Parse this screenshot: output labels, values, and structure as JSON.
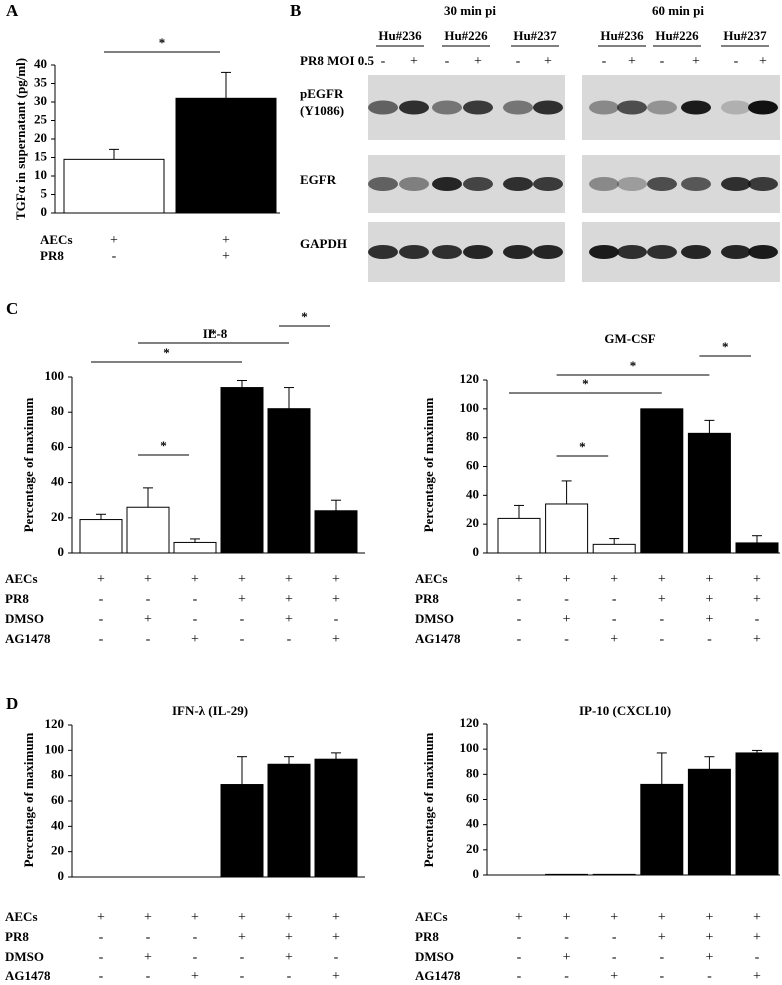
{
  "panel_labels": [
    "A",
    "B",
    "C",
    "D"
  ],
  "chart_data": [
    {
      "type": "bar",
      "y_label": "TGFα in supernatant (pg/ml)",
      "values": [
        14.5,
        31
      ],
      "errors": [
        2.7,
        7
      ],
      "colors": [
        "#ffffff",
        "#000000"
      ],
      "ylim": [
        0,
        40
      ],
      "yticks": [
        0,
        5,
        10,
        15,
        20,
        25,
        30,
        35,
        40
      ],
      "conditions": [
        {
          "name": "AECs",
          "marks": [
            "+",
            "+"
          ]
        },
        {
          "name": "PR8",
          "marks": [
            "-",
            "+"
          ]
        }
      ],
      "significance": [
        {
          "bars": [
            0,
            1
          ],
          "label": "*"
        }
      ]
    },
    {
      "type": "bar",
      "title": "IL-8",
      "y_label": "Percentage of maximum",
      "values": [
        19,
        26,
        6,
        94,
        82,
        24
      ],
      "errors": [
        3,
        11,
        2,
        4,
        12,
        6
      ],
      "colors": [
        "#ffffff",
        "#ffffff",
        "#ffffff",
        "#000000",
        "#000000",
        "#000000"
      ],
      "ylim": [
        0,
        100
      ],
      "yticks": [
        0,
        20,
        40,
        60,
        80,
        100
      ],
      "conditions": [
        {
          "name": "AECs",
          "marks": [
            "+",
            "+",
            "+",
            "+",
            "+",
            "+"
          ]
        },
        {
          "name": "PR8",
          "marks": [
            "-",
            "-",
            "-",
            "+",
            "+",
            "+"
          ]
        },
        {
          "name": "DMSO",
          "marks": [
            "-",
            "+",
            "-",
            "-",
            "+",
            "-"
          ]
        },
        {
          "name": "AG1478",
          "marks": [
            "-",
            "-",
            "+",
            "-",
            "-",
            "+"
          ]
        }
      ],
      "significance": [
        {
          "bars": [
            1,
            2
          ],
          "label": "*"
        },
        {
          "bars": [
            0,
            3
          ],
          "label": "*"
        },
        {
          "bars": [
            1,
            4
          ],
          "label": "*"
        },
        {
          "bars": [
            4,
            5
          ],
          "label": "*"
        }
      ]
    },
    {
      "type": "bar",
      "title": "GM-CSF",
      "y_label": "Percentage of maximum",
      "values": [
        24,
        34,
        6,
        100,
        83,
        7
      ],
      "errors": [
        9,
        16,
        4,
        0,
        9,
        5
      ],
      "colors": [
        "#ffffff",
        "#ffffff",
        "#ffffff",
        "#000000",
        "#000000",
        "#000000"
      ],
      "ylim": [
        0,
        120
      ],
      "yticks": [
        0,
        20,
        40,
        60,
        80,
        100,
        120
      ],
      "conditions": [
        {
          "name": "AECs",
          "marks": [
            "+",
            "+",
            "+",
            "+",
            "+",
            "+"
          ]
        },
        {
          "name": "PR8",
          "marks": [
            "-",
            "-",
            "-",
            "+",
            "+",
            "+"
          ]
        },
        {
          "name": "DMSO",
          "marks": [
            "-",
            "+",
            "-",
            "-",
            "+",
            "-"
          ]
        },
        {
          "name": "AG1478",
          "marks": [
            "-",
            "-",
            "+",
            "-",
            "-",
            "+"
          ]
        }
      ],
      "significance": [
        {
          "bars": [
            1,
            2
          ],
          "label": "*"
        },
        {
          "bars": [
            0,
            3
          ],
          "label": "*"
        },
        {
          "bars": [
            1,
            4
          ],
          "label": "*"
        },
        {
          "bars": [
            4,
            5
          ],
          "label": "*"
        }
      ]
    },
    {
      "type": "bar",
      "title": "IFN-λ (IL-29)",
      "y_label": "Percentage of maximum",
      "values": [
        0,
        0,
        0,
        73,
        89,
        93
      ],
      "errors": [
        0,
        0,
        0,
        22,
        6,
        5
      ],
      "colors": [
        "#ffffff",
        "#ffffff",
        "#ffffff",
        "#000000",
        "#000000",
        "#000000"
      ],
      "ylim": [
        0,
        120
      ],
      "yticks": [
        0,
        20,
        40,
        60,
        80,
        100,
        120
      ],
      "conditions": [
        {
          "name": "AECs",
          "marks": [
            "+",
            "+",
            "+",
            "+",
            "+",
            "+"
          ]
        },
        {
          "name": "PR8",
          "marks": [
            "-",
            "-",
            "-",
            "+",
            "+",
            "+"
          ]
        },
        {
          "name": "DMSO",
          "marks": [
            "-",
            "+",
            "-",
            "-",
            "+",
            "-"
          ]
        },
        {
          "name": "AG1478",
          "marks": [
            "-",
            "-",
            "+",
            "-",
            "-",
            "+"
          ]
        }
      ],
      "significance": []
    },
    {
      "type": "bar",
      "title": "IP-10 (CXCL10)",
      "y_label": "Percentage of maximum",
      "values": [
        0,
        0.5,
        0.5,
        72,
        84,
        97
      ],
      "errors": [
        0,
        0,
        0,
        25,
        10,
        2
      ],
      "colors": [
        "#ffffff",
        "#ffffff",
        "#ffffff",
        "#000000",
        "#000000",
        "#000000"
      ],
      "ylim": [
        0,
        120
      ],
      "yticks": [
        0,
        20,
        40,
        60,
        80,
        100,
        120
      ],
      "conditions": [
        {
          "name": "AECs",
          "marks": [
            "+",
            "+",
            "+",
            "+",
            "+",
            "+"
          ]
        },
        {
          "name": "PR8",
          "marks": [
            "-",
            "-",
            "-",
            "+",
            "+",
            "+"
          ]
        },
        {
          "name": "DMSO",
          "marks": [
            "-",
            "+",
            "-",
            "-",
            "+",
            "-"
          ]
        },
        {
          "name": "AG1478",
          "marks": [
            "-",
            "-",
            "+",
            "-",
            "-",
            "+"
          ]
        }
      ],
      "significance": []
    }
  ],
  "blot": {
    "treatment_label": "PR8  MOI 0.5",
    "timepoints": [
      {
        "label": "30 min pi",
        "donors": [
          "Hu#236",
          "Hu#226",
          "Hu#237"
        ],
        "lanes": [
          "-",
          "+",
          "-",
          "+",
          "-",
          "+"
        ]
      },
      {
        "label": "60 min pi",
        "donors": [
          "Hu#236",
          "Hu#226",
          "Hu#237"
        ],
        "lanes": [
          "-",
          "+",
          "-",
          "+",
          "-",
          "+"
        ]
      }
    ],
    "rows": [
      [
        "pEGFR",
        "(Y1086)"
      ],
      [
        "EGFR"
      ],
      [
        "GAPDH"
      ]
    ]
  }
}
